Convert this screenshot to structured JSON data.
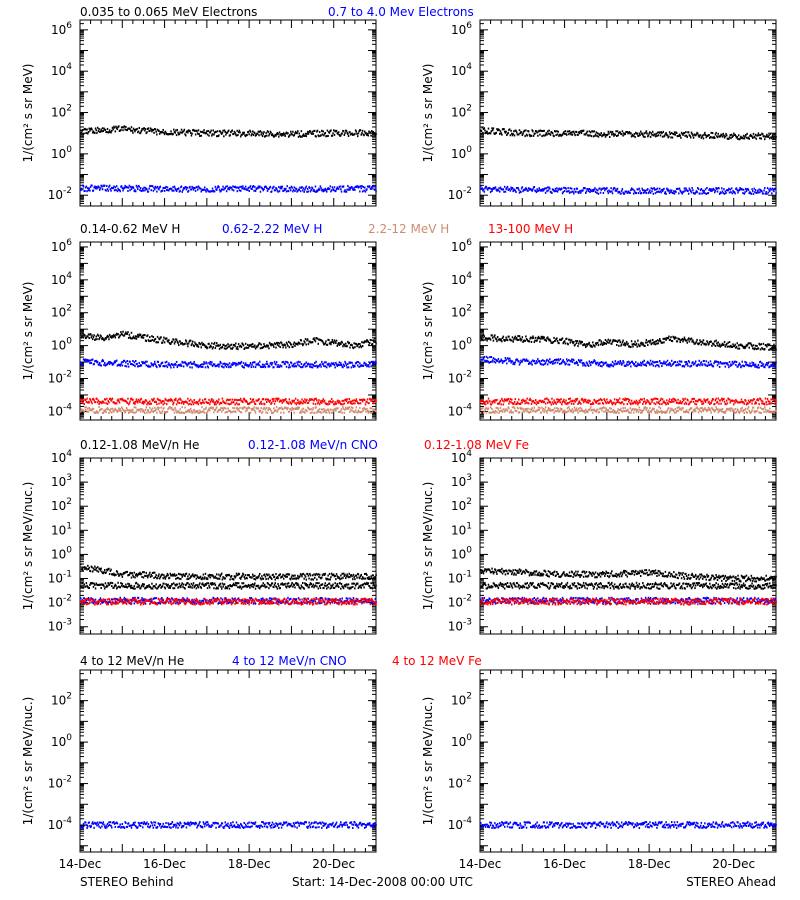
{
  "figure": {
    "footer_left": "STEREO Behind",
    "footer_center": "Start: 14-Dec-2008 00:00 UTC",
    "footer_right": "STEREO Ahead"
  },
  "colors": {
    "black": "#000000",
    "blue": "#0000ff",
    "red": "#ff0000",
    "salmon": "#d08b70"
  },
  "chart_data": [
    {
      "type": "scatter",
      "row": 1,
      "legend_labels": [
        {
          "text": "0.035 to 0.065 MeV Electrons",
          "color": "#000000"
        },
        {
          "text": "0.7 to 4.0 Mev Electrons",
          "color": "#0000ff"
        }
      ],
      "ylabel": "1/(cm² s sr MeV)",
      "yscale": "log",
      "ylim": [
        0.003,
        3000000
      ],
      "yticks": [
        {
          "value": 0.01,
          "base": "10",
          "exp": "-2"
        },
        {
          "value": 1,
          "base": "10",
          "exp": "0"
        },
        {
          "value": 100,
          "base": "10",
          "exp": "2"
        },
        {
          "value": 10000,
          "base": "10",
          "exp": "4"
        },
        {
          "value": 1000000,
          "base": "10",
          "exp": "6"
        }
      ],
      "xlim": [
        "14-Dec-2008",
        "21-Dec-2008"
      ],
      "panels": [
        {
          "spacecraft": "STEREO Behind",
          "series": [
            {
              "color": "#000000",
              "points": [
                [
                  0,
                  12
                ],
                [
                  0.5,
                  14
                ],
                [
                  1,
                  16
                ],
                [
                  1.5,
                  13
                ],
                [
                  2,
                  11
                ],
                [
                  3,
                  10
                ],
                [
                  4,
                  9.5
                ],
                [
                  5,
                  9
                ],
                [
                  6,
                  10
                ],
                [
                  7,
                  10
                ]
              ]
            },
            {
              "color": "#0000ff",
              "points": [
                [
                  0,
                  0.022
                ],
                [
                  1,
                  0.021
                ],
                [
                  2,
                  0.02
                ],
                [
                  3,
                  0.02
                ],
                [
                  4,
                  0.02
                ],
                [
                  5,
                  0.02
                ],
                [
                  6,
                  0.02
                ],
                [
                  7,
                  0.02
                ]
              ]
            }
          ]
        },
        {
          "spacecraft": "STEREO Ahead",
          "series": [
            {
              "color": "#000000",
              "points": [
                [
                  0,
                  14
                ],
                [
                  0.4,
                  12
                ],
                [
                  1,
                  10
                ],
                [
                  2,
                  10
                ],
                [
                  3,
                  9
                ],
                [
                  4,
                  9
                ],
                [
                  5,
                  8
                ],
                [
                  6,
                  7
                ],
                [
                  7,
                  7
                ]
              ]
            },
            {
              "color": "#0000ff",
              "points": [
                [
                  0,
                  0.02
                ],
                [
                  1,
                  0.018
                ],
                [
                  2,
                  0.017
                ],
                [
                  3,
                  0.016
                ],
                [
                  4,
                  0.016
                ],
                [
                  5,
                  0.016
                ],
                [
                  6,
                  0.016
                ],
                [
                  7,
                  0.016
                ]
              ]
            }
          ]
        }
      ]
    },
    {
      "type": "scatter",
      "row": 2,
      "legend_labels": [
        {
          "text": "0.14-0.62 MeV H",
          "color": "#000000"
        },
        {
          "text": "0.62-2.22 MeV H",
          "color": "#0000ff"
        },
        {
          "text": "2.2-12 MeV H",
          "color": "#d08b70"
        },
        {
          "text": "13-100 MeV H",
          "color": "#ff0000"
        }
      ],
      "ylabel": "1/(cm² s sr MeV)",
      "yscale": "log",
      "ylim": [
        3e-05,
        2000000
      ],
      "yticks": [
        {
          "value": 0.0001,
          "base": "10",
          "exp": "-4"
        },
        {
          "value": 0.01,
          "base": "10",
          "exp": "-2"
        },
        {
          "value": 1,
          "base": "10",
          "exp": "0"
        },
        {
          "value": 100,
          "base": "10",
          "exp": "2"
        },
        {
          "value": 10000,
          "base": "10",
          "exp": "4"
        },
        {
          "value": 1000000,
          "base": "10",
          "exp": "6"
        }
      ],
      "xlim": [
        "14-Dec-2008",
        "21-Dec-2008"
      ],
      "panels": [
        {
          "spacecraft": "STEREO Behind",
          "series": [
            {
              "color": "#000000",
              "points": [
                [
                  0,
                  4
                ],
                [
                  0.5,
                  3
                ],
                [
                  1,
                  5
                ],
                [
                  1.5,
                  3
                ],
                [
                  2,
                  2
                ],
                [
                  3,
                  1
                ],
                [
                  4,
                  0.9
                ],
                [
                  5,
                  1.2
                ],
                [
                  5.5,
                  2
                ],
                [
                  6,
                  1.5
                ],
                [
                  6.5,
                  1
                ],
                [
                  7,
                  2
                ]
              ]
            },
            {
              "color": "#0000ff",
              "points": [
                [
                  0,
                  0.1
                ],
                [
                  1,
                  0.08
                ],
                [
                  2,
                  0.07
                ],
                [
                  3,
                  0.07
                ],
                [
                  4,
                  0.07
                ],
                [
                  5,
                  0.07
                ],
                [
                  6,
                  0.07
                ],
                [
                  7,
                  0.07
                ]
              ]
            },
            {
              "color": "#ff0000",
              "points": [
                [
                  0,
                  0.0004
                ],
                [
                  1,
                  0.0004
                ],
                [
                  2,
                  0.0004
                ],
                [
                  3,
                  0.0004
                ],
                [
                  4,
                  0.0004
                ],
                [
                  5,
                  0.0004
                ],
                [
                  6,
                  0.0004
                ],
                [
                  7,
                  0.0004
                ]
              ]
            },
            {
              "color": "#d08b70",
              "points": [
                [
                  0,
                  0.00012
                ],
                [
                  7,
                  0.00012
                ]
              ]
            }
          ]
        },
        {
          "spacecraft": "STEREO Ahead",
          "series": [
            {
              "color": "#000000",
              "points": [
                [
                  0,
                  3
                ],
                [
                  1,
                  2.5
                ],
                [
                  2,
                  2
                ],
                [
                  2.5,
                  1
                ],
                [
                  3,
                  1.8
                ],
                [
                  3.5,
                  1.2
                ],
                [
                  4,
                  1.5
                ],
                [
                  4.5,
                  2.5
                ],
                [
                  5,
                  2
                ],
                [
                  6,
                  1
                ],
                [
                  7,
                  0.8
                ]
              ]
            },
            {
              "color": "#0000ff",
              "points": [
                [
                  0,
                  0.15
                ],
                [
                  1,
                  0.1
                ],
                [
                  2,
                  0.1
                ],
                [
                  3,
                  0.08
                ],
                [
                  4,
                  0.08
                ],
                [
                  5,
                  0.08
                ],
                [
                  6,
                  0.07
                ],
                [
                  7,
                  0.07
                ]
              ]
            },
            {
              "color": "#ff0000",
              "points": [
                [
                  0,
                  0.0004
                ],
                [
                  1,
                  0.0004
                ],
                [
                  2,
                  0.0004
                ],
                [
                  3,
                  0.0004
                ],
                [
                  4,
                  0.0004
                ],
                [
                  5,
                  0.0004
                ],
                [
                  6,
                  0.0004
                ],
                [
                  7,
                  0.0004
                ]
              ]
            },
            {
              "color": "#d08b70",
              "points": [
                [
                  0,
                  0.00012
                ],
                [
                  7,
                  0.00012
                ]
              ]
            }
          ]
        }
      ]
    },
    {
      "type": "scatter",
      "row": 3,
      "legend_labels": [
        {
          "text": "0.12-1.08 MeV/n He",
          "color": "#000000"
        },
        {
          "text": "0.12-1.08 MeV/n CNO",
          "color": "#0000ff"
        },
        {
          "text": "0.12-1.08 MeV Fe",
          "color": "#ff0000"
        }
      ],
      "ylabel": "1/(cm² s sr MeV/nuc.)",
      "yscale": "log",
      "ylim": [
        0.0005,
        10000
      ],
      "yticks": [
        {
          "value": 0.001,
          "base": "10",
          "exp": "-3"
        },
        {
          "value": 0.01,
          "base": "10",
          "exp": "-2"
        },
        {
          "value": 0.1,
          "base": "10",
          "exp": "-1"
        },
        {
          "value": 1,
          "base": "10",
          "exp": "0"
        },
        {
          "value": 10,
          "base": "10",
          "exp": "1"
        },
        {
          "value": 100,
          "base": "10",
          "exp": "2"
        },
        {
          "value": 1000,
          "base": "10",
          "exp": "3"
        },
        {
          "value": 10000,
          "base": "10",
          "exp": "4"
        }
      ],
      "xlim": [
        "14-Dec-2008",
        "21-Dec-2008"
      ],
      "panels": [
        {
          "spacecraft": "STEREO Behind",
          "series": [
            {
              "color": "#000000",
              "points": [
                [
                  0,
                  0.3
                ],
                [
                  0.3,
                  0.25
                ],
                [
                  1,
                  0.15
                ],
                [
                  2,
                  0.13
                ],
                [
                  3,
                  0.12
                ],
                [
                  4,
                  0.12
                ],
                [
                  5,
                  0.12
                ],
                [
                  6,
                  0.12
                ],
                [
                  7,
                  0.12
                ]
              ]
            },
            {
              "color": "#000000",
              "points": [
                [
                  0,
                  0.05
                ],
                [
                  7,
                  0.05
                ]
              ]
            },
            {
              "color": "#0000ff",
              "points": [
                [
                  0,
                  0.012
                ],
                [
                  7,
                  0.012
                ]
              ]
            },
            {
              "color": "#ff0000",
              "points": [
                [
                  0,
                  0.011
                ],
                [
                  7,
                  0.011
                ]
              ]
            }
          ]
        },
        {
          "spacecraft": "STEREO Ahead",
          "series": [
            {
              "color": "#000000",
              "points": [
                [
                  0,
                  0.2
                ],
                [
                  1,
                  0.18
                ],
                [
                  2,
                  0.15
                ],
                [
                  3,
                  0.15
                ],
                [
                  4,
                  0.17
                ],
                [
                  5,
                  0.12
                ],
                [
                  6,
                  0.1
                ],
                [
                  7,
                  0.1
                ]
              ]
            },
            {
              "color": "#000000",
              "points": [
                [
                  0,
                  0.05
                ],
                [
                  7,
                  0.05
                ]
              ]
            },
            {
              "color": "#0000ff",
              "points": [
                [
                  0,
                  0.012
                ],
                [
                  7,
                  0.012
                ]
              ]
            },
            {
              "color": "#ff0000",
              "points": [
                [
                  0,
                  0.011
                ],
                [
                  7,
                  0.011
                ]
              ]
            }
          ]
        }
      ]
    },
    {
      "type": "scatter",
      "row": 4,
      "legend_labels": [
        {
          "text": "4 to 12 MeV/n He",
          "color": "#000000"
        },
        {
          "text": "4 to 12 MeV/n CNO",
          "color": "#0000ff"
        },
        {
          "text": "4 to 12 MeV Fe",
          "color": "#ff0000"
        }
      ],
      "ylabel": "1/(cm² s sr MeV/nuc.)",
      "yscale": "log",
      "ylim": [
        5e-06,
        3000
      ],
      "yticks": [
        {
          "value": 0.0001,
          "base": "10",
          "exp": "-4"
        },
        {
          "value": 0.01,
          "base": "10",
          "exp": "-2"
        },
        {
          "value": 1,
          "base": "10",
          "exp": "0"
        },
        {
          "value": 100,
          "base": "10",
          "exp": "2"
        }
      ],
      "xlim": [
        "14-Dec-2008",
        "21-Dec-2008"
      ],
      "xticks": [
        {
          "day": 0,
          "label": "14-Dec"
        },
        {
          "day": 2,
          "label": "16-Dec"
        },
        {
          "day": 4,
          "label": "18-Dec"
        },
        {
          "day": 6,
          "label": "20-Dec"
        }
      ],
      "panels": [
        {
          "spacecraft": "STEREO Behind",
          "series": [
            {
              "color": "#0000ff",
              "points": [
                [
                  0,
                  0.0001
                ],
                [
                  7,
                  0.0001
                ]
              ]
            }
          ]
        },
        {
          "spacecraft": "STEREO Ahead",
          "series": [
            {
              "color": "#0000ff",
              "points": [
                [
                  0,
                  0.0001
                ],
                [
                  7,
                  0.0001
                ]
              ]
            }
          ]
        }
      ]
    }
  ]
}
